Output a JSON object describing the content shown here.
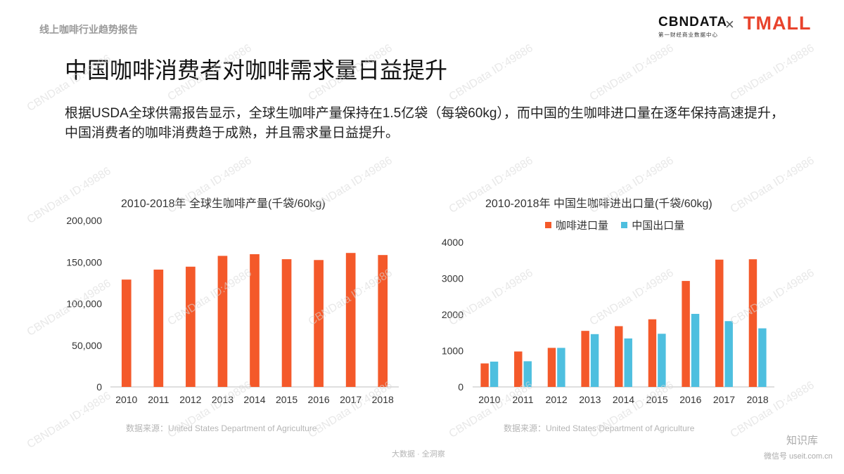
{
  "header": {
    "section_label": "线上咖啡行业趋势报告",
    "logo_cbn_main": "CBNDATA",
    "logo_cbn_sub": "第一财经商业数据中心",
    "logo_separator": "×",
    "logo_tmall": "TMALL"
  },
  "page": {
    "title": "中国咖啡消费者对咖啡需求量日益提升",
    "lead": "根据USDA全球供需报告显示，全球生咖啡产量保持在1.5亿袋（每袋60kg），而中国的生咖啡进口量在逐年保持高速提升，中国消费者的咖啡消费趋于成熟，并且需求量日益提升。"
  },
  "watermark": "CBNData ID:49886",
  "footer": {
    "center": "大数据 · 全洞察",
    "zhihu_name": "知识库",
    "zhihu_sub": "微信号 useit.com.cn"
  },
  "colors": {
    "orange": "#f4592a",
    "blue": "#4ebfdf",
    "axis": "#bfbfbf"
  },
  "chart_data": [
    {
      "type": "bar",
      "title": "2010-2018年 全球生咖啡产量(千袋/60kg)",
      "categories": [
        "2010",
        "2011",
        "2012",
        "2013",
        "2014",
        "2015",
        "2016",
        "2017",
        "2018"
      ],
      "values": [
        129000,
        141000,
        144500,
        157500,
        159500,
        153500,
        152500,
        161000,
        158500
      ],
      "ylim": [
        0,
        200000
      ],
      "yticks": [
        0,
        50000,
        100000,
        150000,
        200000
      ],
      "ytick_labels": [
        "0",
        "50,000",
        "100,000",
        "150,000",
        "200,000"
      ],
      "source": "数据来源：United States Department of Agriculture",
      "legend": false,
      "grid": false
    },
    {
      "type": "bar",
      "title": "2010-2018年 中国生咖啡进出口量(千袋/60kg)",
      "categories": [
        "2010",
        "2011",
        "2012",
        "2013",
        "2014",
        "2015",
        "2016",
        "2017",
        "2018"
      ],
      "series": [
        {
          "name": "咖啡进口量",
          "values": [
            650,
            980,
            1080,
            1550,
            1680,
            1870,
            2930,
            3520,
            3530
          ]
        },
        {
          "name": "中国出口量",
          "values": [
            700,
            710,
            1080,
            1460,
            1340,
            1470,
            2020,
            1820,
            1620
          ]
        }
      ],
      "ylim": [
        0,
        4000
      ],
      "yticks": [
        0,
        1000,
        2000,
        3000,
        4000
      ],
      "ytick_labels": [
        "0",
        "1000",
        "2000",
        "3000",
        "4000"
      ],
      "source": "数据来源：United States Department of Agriculture",
      "legend": "top",
      "grid": false
    }
  ]
}
